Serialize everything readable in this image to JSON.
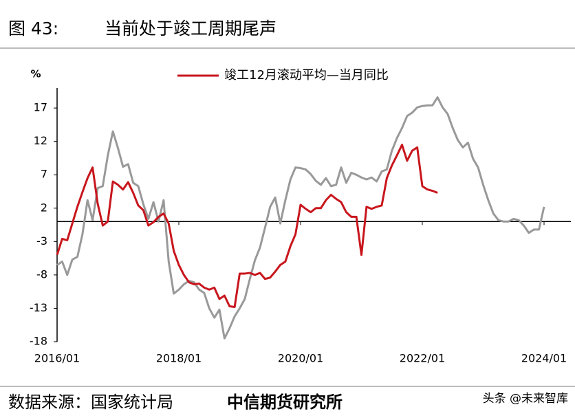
{
  "chart_data": {
    "type": "line",
    "title": "图 43:",
    "subtitle": "当前处于竣工周期尾声",
    "y_label": "%",
    "source": "数据来源：国家统计局",
    "source_org": "中信期货研究所",
    "watermark": "头条 @未来智库",
    "x": [
      "2016/01",
      "2016/02",
      "2016/03",
      "2016/04",
      "2016/05",
      "2016/06",
      "2016/07",
      "2016/08",
      "2016/09",
      "2016/10",
      "2016/11",
      "2016/12",
      "2017/01",
      "2017/02",
      "2017/03",
      "2017/04",
      "2017/05",
      "2017/06",
      "2017/07",
      "2017/08",
      "2017/09",
      "2017/10",
      "2017/11",
      "2017/12",
      "2018/01",
      "2018/02",
      "2018/03",
      "2018/04",
      "2018/05",
      "2018/06",
      "2018/07",
      "2018/08",
      "2018/09",
      "2018/10",
      "2018/11",
      "2018/12",
      "2019/01",
      "2019/02",
      "2019/03",
      "2019/04",
      "2019/05",
      "2019/06",
      "2019/07",
      "2019/08",
      "2019/09",
      "2019/10",
      "2019/11",
      "2019/12",
      "2020/01",
      "2020/02",
      "2020/03",
      "2020/04",
      "2020/05",
      "2020/06",
      "2020/07",
      "2020/08",
      "2020/09",
      "2020/10",
      "2020/11",
      "2020/12",
      "2021/01",
      "2021/02",
      "2021/03",
      "2021/04",
      "2021/05",
      "2021/06",
      "2021/07",
      "2021/08",
      "2021/09",
      "2021/10",
      "2021/11",
      "2021/12",
      "2022/01",
      "2022/02",
      "2022/03",
      "2022/04",
      "2022/05",
      "2022/06",
      "2022/07",
      "2022/08",
      "2022/09",
      "2022/10",
      "2022/11",
      "2022/12",
      "2023/01",
      "2023/02",
      "2023/03",
      "2023/04",
      "2023/05",
      "2023/06",
      "2023/07",
      "2023/08",
      "2023/09",
      "2023/10",
      "2023/11",
      "2023/12",
      "2024/01"
    ],
    "series": [
      {
        "name": "竣工12月滚动平均—当月同比",
        "color": "#c8161d",
        "values": [
          -5,
          -2.6,
          -2.8,
          -0.3,
          2.2,
          4.4,
          6.5,
          8.1,
          2.7,
          -0.6,
          0,
          6,
          5.5,
          4.8,
          5.9,
          4.3,
          2.4,
          1.7,
          -0.6,
          -0.1,
          0.7,
          1.2,
          -0.3,
          -4.4,
          -6.5,
          -8,
          -9.1,
          -9.4,
          -9.3,
          -9.9,
          -10.2,
          -9.9,
          -11.6,
          -11.1,
          -12.7,
          -12.8,
          -7.8,
          -7.8,
          -7.7,
          -8,
          -7.7,
          -8.6,
          -8.4,
          -7.5,
          -6.5,
          -6,
          -3.7,
          -1.9,
          2.5,
          1.9,
          1.4,
          2,
          2,
          3.2,
          4,
          3.4,
          2.9,
          1.4,
          0.7,
          0.7,
          -5,
          2.2,
          1.9,
          2.2,
          2.4,
          6.5,
          8.4,
          9.9,
          11.5,
          9.1,
          10.6,
          11.1,
          5.3,
          4.8,
          4.6,
          4.3,
          null,
          null,
          null,
          null,
          null,
          null,
          null,
          null,
          null,
          null,
          null,
          null,
          null,
          null,
          null,
          null,
          null,
          null,
          null,
          null,
          null
        ]
      },
      {
        "color": "#999999",
        "values": [
          -6.5,
          -6,
          -8,
          -5.7,
          -5.3,
          -1.9,
          3.2,
          0.2,
          5,
          5.3,
          9.9,
          13.5,
          11,
          8.2,
          8.6,
          5.8,
          5.3,
          2.6,
          0.4,
          2.9,
          0,
          3.2,
          -6,
          -10.8,
          -10.2,
          -9.4,
          -8.9,
          -9.1,
          -10.2,
          -10.7,
          -13,
          -14.4,
          -13.2,
          -17.5,
          -16,
          -14.2,
          -13,
          -11.6,
          -8.6,
          -5.8,
          -3.9,
          -0.9,
          2.2,
          3.6,
          -0.3,
          3.2,
          6.3,
          8.1,
          8,
          7.8,
          7.1,
          6.1,
          5.5,
          6.5,
          5.3,
          5.5,
          8.1,
          5.8,
          7.3,
          7,
          6.6,
          6.3,
          6.6,
          6,
          7.5,
          7.8,
          10.6,
          12.5,
          14,
          15.8,
          16.3,
          17.1,
          17.3,
          17.4,
          17.4,
          18.6,
          17.1,
          16.1,
          14,
          12.2,
          11.1,
          11.8,
          9.4,
          8.1,
          5.5,
          3.2,
          1.2,
          0.2,
          0,
          0,
          0.4,
          0.2,
          -0.6,
          -1.7,
          -1.2,
          -1.2,
          2.2
        ]
      }
    ],
    "ylim": [
      -18,
      20
    ],
    "yticks": [
      -18,
      -13,
      -8,
      -3,
      2,
      7,
      12,
      17
    ]
  }
}
